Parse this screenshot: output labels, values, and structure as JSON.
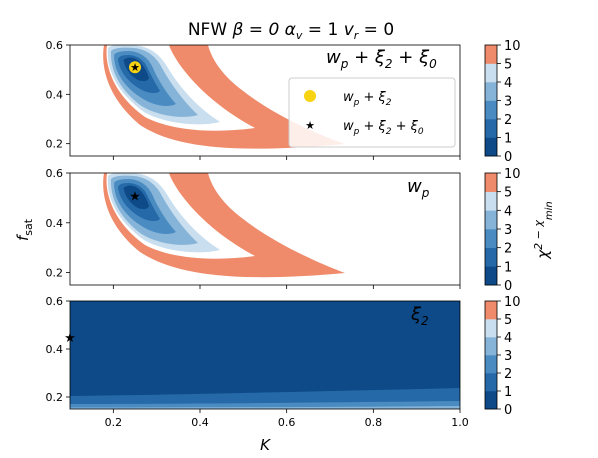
{
  "chart_data": {
    "type": "contour",
    "title": {
      "profile": "NFW",
      "beta": "β = 0",
      "alpha": "α",
      "alpha_sub": "v",
      "alpha_rest": " = 1",
      "vr": "v",
      "vr_sub": "r",
      "vr_rest": " = 0"
    },
    "xlabel": "K",
    "ylabel_main": "f",
    "ylabel_sub": "sat",
    "colorbar_label_main": "χ",
    "colorbar_label_rest": "2 − χ",
    "colorbar_label_sub": "min",
    "xlim": [
      0.1,
      1.0
    ],
    "ylim": [
      0.15,
      0.6
    ],
    "xticks": [
      0.2,
      0.4,
      0.6,
      0.8,
      1.0
    ],
    "xtick_labels": [
      "0.2",
      "0.4",
      "0.6",
      "0.8",
      "1.0"
    ],
    "yticks": [
      0.2,
      0.4,
      0.6
    ],
    "ytick_labels": [
      "0.2",
      "0.4",
      "0.6"
    ],
    "colorbar_levels": [
      0,
      1,
      2,
      3,
      4,
      5,
      10
    ],
    "colorbar_tick_labels": [
      "0",
      "1",
      "2",
      "3",
      "4",
      "5",
      "10"
    ],
    "colorbar_colors": [
      "#0d4a87",
      "#2569a8",
      "#4a8cc2",
      "#86b4d8",
      "#c9deee",
      "#ef8a6a"
    ],
    "colors": {
      "best_fit": "#f7d312",
      "star_red": "#e8141c",
      "star_green": "#2aa02b",
      "edge": "#000000"
    },
    "panels": [
      {
        "id": "wp-xi2-xi0",
        "annotation": {
          "main": "w",
          "sub": "p",
          "rest": " + ξ",
          "sub2": "2",
          "rest2": "  + ξ",
          "sub3": "0"
        },
        "best_fit": {
          "x": 0.25,
          "y": 0.51
        },
        "legend": [
          {
            "label_main": "w",
            "label_sub": "p",
            "label_rest": " + ξ",
            "label_sub2": "2",
            "marker": "circle"
          },
          {
            "label_main": "w",
            "label_sub": "p",
            "label_rest": " + ξ",
            "label_sub2": "2",
            "label_rest2": " + ξ",
            "label_sub3": "0",
            "marker": "star"
          }
        ]
      },
      {
        "id": "wp",
        "annotation": {
          "main": "w",
          "sub": "p"
        },
        "best_fit": {
          "x": 0.25,
          "y": 0.51
        }
      },
      {
        "id": "xi2",
        "annotation": {
          "main": "ξ",
          "sub": "2"
        },
        "best_fit": {
          "x": 0.1,
          "y": 0.45
        }
      }
    ]
  }
}
